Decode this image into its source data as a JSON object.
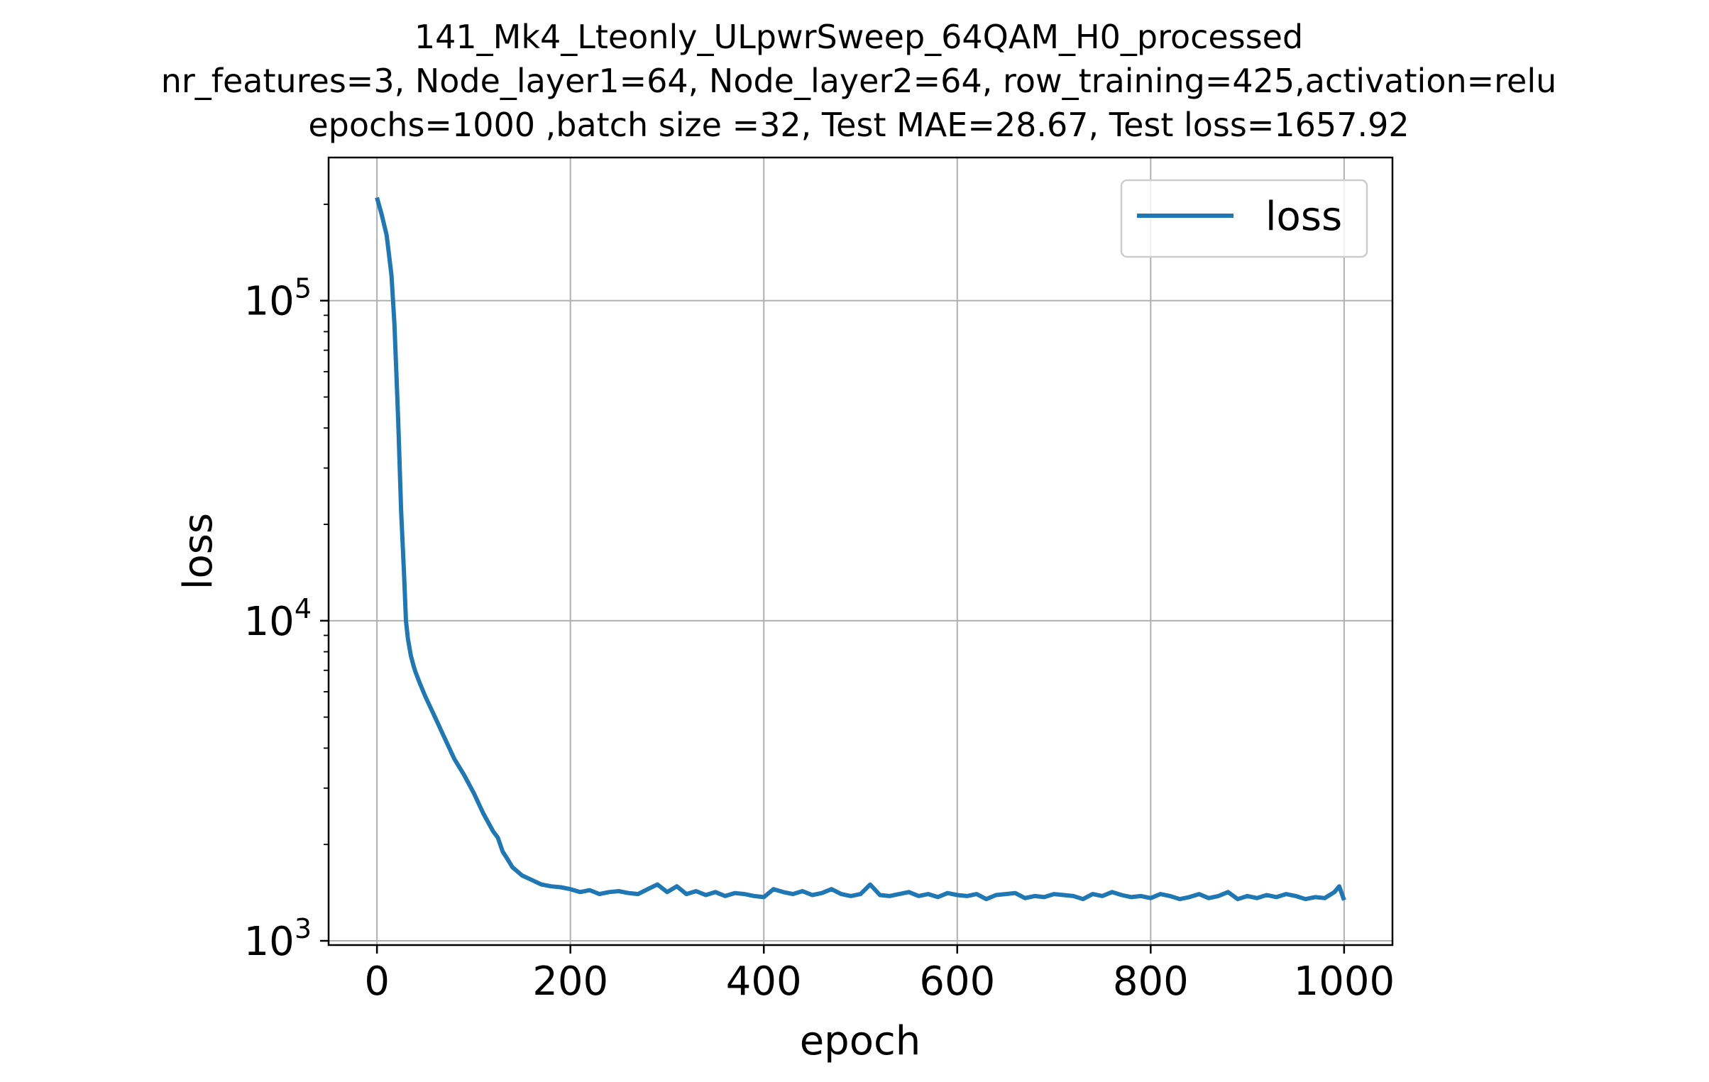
{
  "chart_data": {
    "type": "line",
    "title_lines": [
      "141_Mk4_Lteonly_ULpwrSweep_64QAM_H0_processed",
      "nr_features=3, Node_layer1=64, Node_layer2=64, row_training=425,activation=relu",
      "epochs=1000 ,batch size =32, Test MAE=28.67, Test loss=1657.92"
    ],
    "xlabel": "epoch",
    "ylabel": "loss",
    "xlim": [
      -50,
      1050
    ],
    "ylim": [
      970,
      280000
    ],
    "yscale": "log",
    "grid": true,
    "legend_position": "upper right",
    "xticks": [
      0,
      200,
      400,
      600,
      800,
      1000
    ],
    "xtick_labels": [
      "0",
      "200",
      "400",
      "600",
      "800",
      "1000"
    ],
    "yticks": [
      1000,
      10000,
      100000
    ],
    "ytick_base": "10",
    "ytick_exponents": [
      "3",
      "4",
      "5"
    ],
    "series": [
      {
        "name": "loss",
        "color": "#1f77b4",
        "x": [
          0,
          5,
          10,
          15,
          18,
          20,
          22,
          25,
          28,
          30,
          32,
          35,
          38,
          40,
          45,
          50,
          60,
          70,
          80,
          90,
          100,
          110,
          120,
          125,
          130,
          135,
          140,
          150,
          160,
          170,
          180,
          190,
          200,
          210,
          220,
          230,
          240,
          250,
          260,
          270,
          280,
          290,
          300,
          310,
          320,
          330,
          340,
          350,
          360,
          370,
          380,
          390,
          400,
          410,
          420,
          430,
          440,
          450,
          460,
          470,
          480,
          490,
          500,
          510,
          520,
          530,
          540,
          550,
          560,
          570,
          580,
          590,
          600,
          610,
          620,
          630,
          640,
          650,
          660,
          670,
          680,
          690,
          700,
          710,
          720,
          730,
          740,
          750,
          760,
          770,
          780,
          790,
          800,
          810,
          820,
          830,
          840,
          850,
          860,
          870,
          880,
          890,
          900,
          910,
          920,
          930,
          940,
          950,
          960,
          970,
          980,
          990,
          995,
          1000
        ],
        "y": [
          210000,
          185000,
          160000,
          120000,
          85000,
          60000,
          42000,
          22000,
          14000,
          10000,
          8800,
          7800,
          7200,
          6900,
          6300,
          5800,
          5000,
          4300,
          3700,
          3300,
          2900,
          2500,
          2200,
          2100,
          1900,
          1800,
          1700,
          1600,
          1550,
          1500,
          1480,
          1470,
          1450,
          1420,
          1440,
          1400,
          1420,
          1430,
          1410,
          1400,
          1450,
          1500,
          1420,
          1480,
          1400,
          1430,
          1390,
          1420,
          1380,
          1410,
          1400,
          1380,
          1370,
          1450,
          1420,
          1400,
          1430,
          1390,
          1410,
          1450,
          1400,
          1380,
          1400,
          1500,
          1390,
          1380,
          1400,
          1420,
          1380,
          1400,
          1370,
          1410,
          1390,
          1380,
          1400,
          1350,
          1390,
          1400,
          1410,
          1360,
          1380,
          1370,
          1400,
          1390,
          1380,
          1350,
          1400,
          1380,
          1420,
          1390,
          1370,
          1380,
          1360,
          1400,
          1380,
          1350,
          1370,
          1400,
          1360,
          1380,
          1420,
          1350,
          1380,
          1360,
          1390,
          1370,
          1400,
          1380,
          1350,
          1370,
          1360,
          1420,
          1480,
          1340
        ]
      }
    ]
  }
}
